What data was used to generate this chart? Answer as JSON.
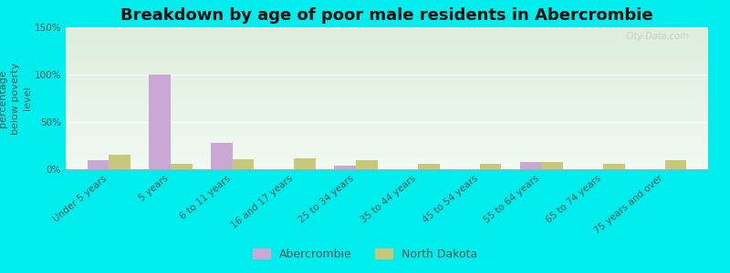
{
  "title": "Breakdown by age of poor male residents in Abercrombie",
  "ylabel": "percentage\nbelow poverty\nlevel",
  "categories": [
    "Under 5 years",
    "5 years",
    "6 to 11 years",
    "16 and 17 years",
    "25 to 34 years",
    "35 to 44 years",
    "45 to 54 years",
    "55 to 64 years",
    "65 to 74 years",
    "75 years and over"
  ],
  "abercrombie": [
    10,
    100,
    28,
    0,
    4,
    0,
    0,
    8,
    0,
    0
  ],
  "north_dakota": [
    15,
    6,
    11,
    12,
    10,
    6,
    6,
    8,
    6,
    10
  ],
  "abercrombie_color": "#c9a8d4",
  "north_dakota_color": "#c8c87a",
  "ylim": [
    0,
    150
  ],
  "yticks": [
    0,
    50,
    100,
    150
  ],
  "ytick_labels": [
    "0%",
    "50%",
    "100%",
    "150%"
  ],
  "bar_width": 0.35,
  "title_fontsize": 13,
  "label_fontsize": 8,
  "tick_fontsize": 7.5,
  "legend_fontsize": 9,
  "outer_bg": "#00eded",
  "plot_bg_top": "#ddeedd",
  "plot_bg_bottom": "#f2faf2",
  "watermark": "City-Data.com"
}
